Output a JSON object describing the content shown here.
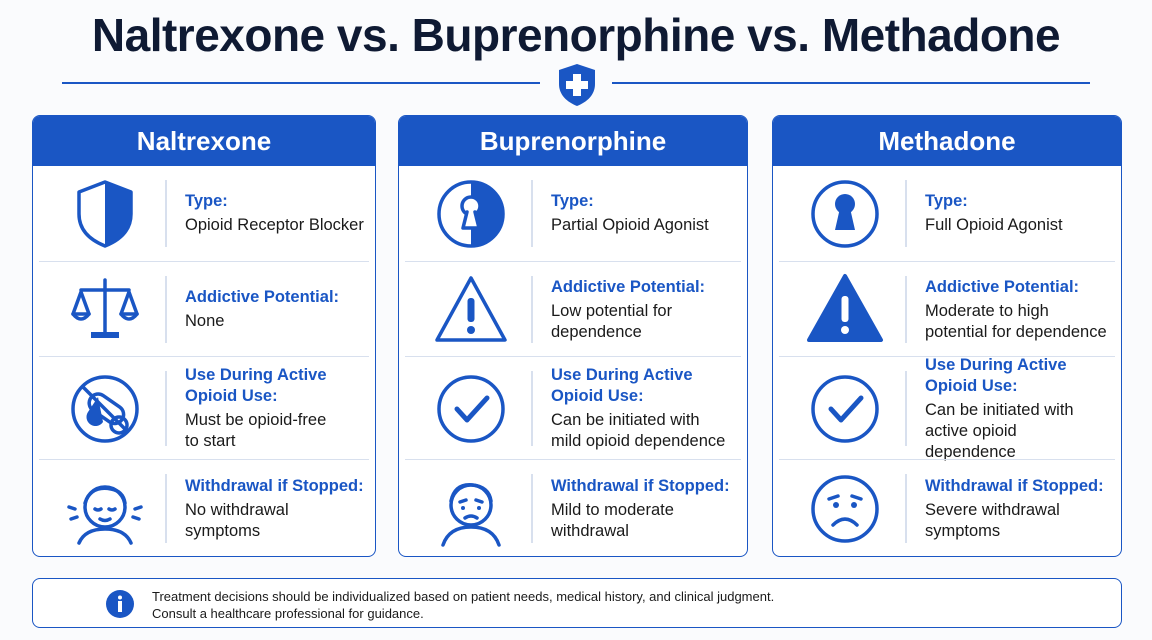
{
  "header": {
    "title": "Naltrexone vs. Buprenorphine vs. Methadone"
  },
  "columns": [
    {
      "name": "Naltrexone",
      "rows": [
        {
          "label": [
            "Type:"
          ],
          "text": [
            "Opioid Receptor Blocker"
          ]
        },
        {
          "label": [
            "Addictive Potential:"
          ],
          "text": [
            "None"
          ]
        },
        {
          "label": [
            "Use During Active",
            "Opioid Use:"
          ],
          "text": [
            "Must be opioid-free",
            "to start"
          ]
        },
        {
          "label": [
            "Withdrawal if Stopped:"
          ],
          "text": [
            "No withdrawal",
            "symptoms"
          ]
        }
      ]
    },
    {
      "name": "Buprenorphine",
      "rows": [
        {
          "label": [
            "Type:"
          ],
          "text": [
            "Partial Opioid Agonist"
          ]
        },
        {
          "label": [
            "Addictive Potential:"
          ],
          "text": [
            "Low potential for",
            "dependence"
          ]
        },
        {
          "label": [
            "Use During Active",
            "Opioid Use:"
          ],
          "text": [
            "Can be initiated with",
            "mild opioid dependence"
          ]
        },
        {
          "label": [
            "Withdrawal if Stopped:"
          ],
          "text": [
            "Mild to moderate",
            "withdrawal"
          ]
        }
      ]
    },
    {
      "name": "Methadone",
      "rows": [
        {
          "label": [
            "Type:"
          ],
          "text": [
            "Full Opioid Agonist"
          ]
        },
        {
          "label": [
            "Addictive Potential:"
          ],
          "text": [
            "Moderate to high",
            "potential for dependence"
          ]
        },
        {
          "label": [
            "Use During Active",
            "Opioid Use:"
          ],
          "text": [
            "Can be initiated with",
            "active opioid dependence"
          ]
        },
        {
          "label": [
            "Withdrawal if Stopped:"
          ],
          "text": [
            "Severe withdrawal",
            "symptoms"
          ]
        }
      ]
    }
  ],
  "footer": {
    "lines": [
      "Treatment decisions should be individualized based on patient needs, medical history, and clinical judgment.",
      "Consult a healthcare professional for guidance."
    ]
  }
}
